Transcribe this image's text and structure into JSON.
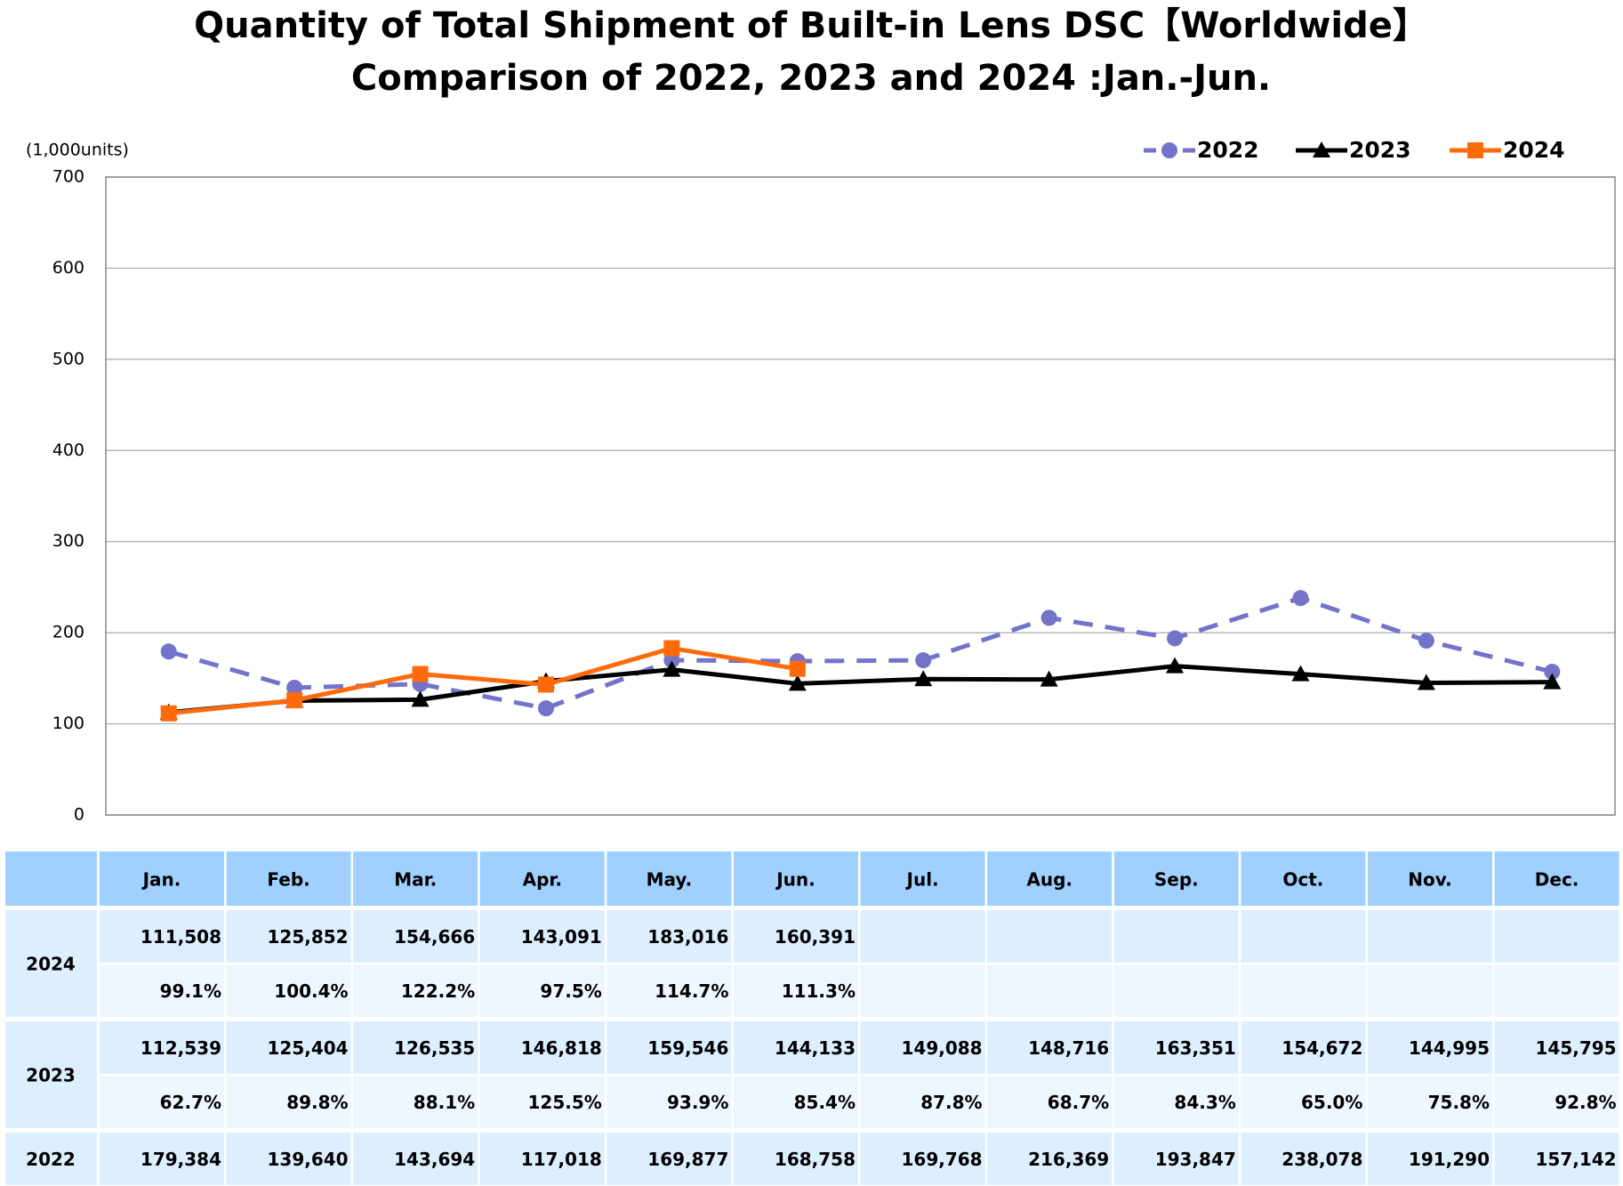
{
  "chart_data": {
    "type": "line",
    "title": "Quantity of Total Shipment of Built-in Lens DSC【Worldwide】",
    "subtitle": "Comparison of 2022, 2023 and 2024 :Jan.-Jun.",
    "y_axis_label": "(1,000units)",
    "ylim": [
      0,
      700
    ],
    "yticks": [
      0,
      100,
      200,
      300,
      400,
      500,
      600,
      700
    ],
    "grid": true,
    "series": [
      {
        "name": "2022",
        "color": "#7373c9",
        "dashed": true,
        "marker": "circle",
        "values": [
          179.384,
          139.64,
          143.694,
          117.018,
          169.877,
          168.758,
          169.768,
          216.369,
          193.847,
          238.078,
          191.29,
          157.142
        ]
      },
      {
        "name": "2023",
        "color": "#000000",
        "dashed": false,
        "marker": "triangle",
        "values": [
          112.539,
          125.404,
          126.535,
          146.818,
          159.546,
          144.133,
          149.088,
          148.716,
          163.351,
          154.672,
          144.995,
          145.795
        ]
      },
      {
        "name": "2024",
        "color": "#ff6a0a",
        "dashed": false,
        "marker": "square",
        "values": [
          111.508,
          125.852,
          154.666,
          143.091,
          183.016,
          160.391,
          null,
          null,
          null,
          null,
          null,
          null
        ]
      }
    ]
  },
  "table": {
    "header": [
      "Jan.",
      "Feb.",
      "Mar.",
      "Apr.",
      "May.",
      "Jun.",
      "Jul.",
      "Aug.",
      "Sep.",
      "Oct.",
      "Nov.",
      "Dec."
    ],
    "groups": [
      {
        "label": "2024",
        "rows": [
          [
            "111,508",
            "125,852",
            "154,666",
            "143,091",
            "183,016",
            "160,391"
          ],
          [
            "99.1%",
            "100.4%",
            "122.2%",
            "97.5%",
            "114.7%",
            "111.3%"
          ]
        ]
      },
      {
        "label": "2023",
        "rows": [
          [
            "112,539",
            "125,404",
            "126,535",
            "146,818",
            "159,546",
            "144,133",
            "149,088",
            "148,716",
            "163,351",
            "154,672",
            "144,995",
            "145,795"
          ],
          [
            "62.7%",
            "89.8%",
            "88.1%",
            "125.5%",
            "93.9%",
            "85.4%",
            "87.8%",
            "68.7%",
            "84.3%",
            "65.0%",
            "75.8%",
            "92.8%"
          ]
        ]
      },
      {
        "label": "2022",
        "rows": [
          [
            "179,384",
            "139,640",
            "143,694",
            "117,018",
            "169,877",
            "168,758",
            "169,768",
            "216,369",
            "193,847",
            "238,078",
            "191,290",
            "157,142"
          ]
        ]
      }
    ]
  }
}
